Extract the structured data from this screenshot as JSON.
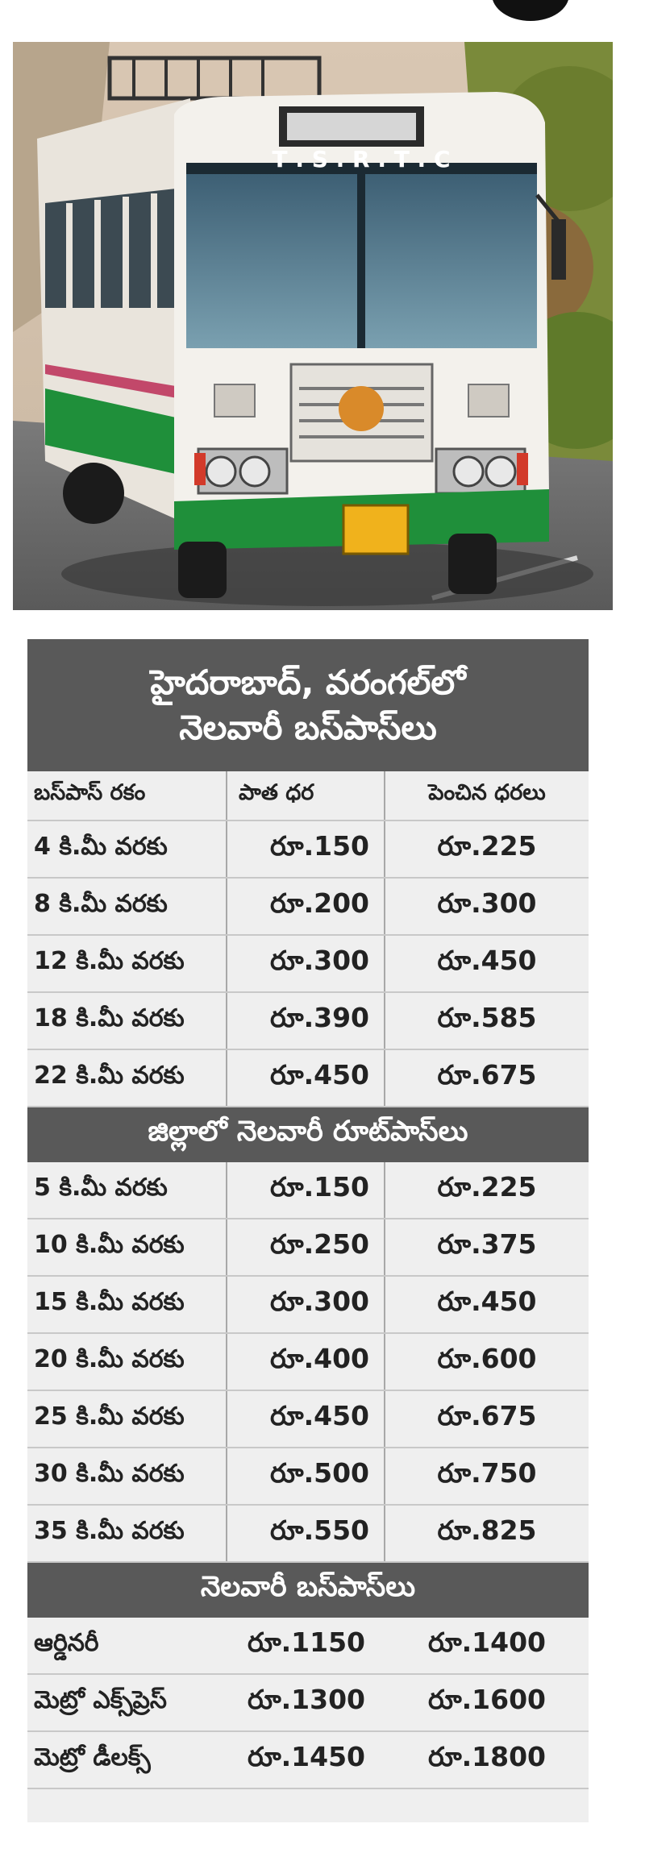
{
  "photo": {
    "bus_marking": "T . S . R . T . C"
  },
  "title": {
    "line1": "హైదరాబాద్, వరంగల్‌లో",
    "line2": "నెలవారీ బస్‌పాస్‌లు"
  },
  "table1": {
    "headers": [
      "బస్‌పాస్ రకం",
      "పాత ధర",
      "పెంచిన ధరలు"
    ],
    "rows": [
      [
        "4 కి.మీ వరకు",
        "రూ.150",
        "రూ.225"
      ],
      [
        "8 కి.మీ వరకు",
        "రూ.200",
        "రూ.300"
      ],
      [
        "12 కి.మీ వరకు",
        "రూ.300",
        "రూ.450"
      ],
      [
        "18 కి.మీ వరకు",
        "రూ.390",
        "రూ.585"
      ],
      [
        "22 కి.మీ వరకు",
        "రూ.450",
        "రూ.675"
      ]
    ]
  },
  "section2": {
    "title": "జిల్లాలో నెలవారీ రూట్‌పాస్‌లు",
    "rows": [
      [
        "5 కి.మీ వరకు",
        "రూ.150",
        "రూ.225"
      ],
      [
        "10 కి.మీ వరకు",
        "రూ.250",
        "రూ.375"
      ],
      [
        "15 కి.మీ వరకు",
        "రూ.300",
        "రూ.450"
      ],
      [
        "20 కి.మీ వరకు",
        "రూ.400",
        "రూ.600"
      ],
      [
        "25 కి.మీ వరకు",
        "రూ.450",
        "రూ.675"
      ],
      [
        "30 కి.మీ వరకు",
        "రూ.500",
        "రూ.750"
      ],
      [
        "35 కి.మీ వరకు",
        "రూ.550",
        "రూ.825"
      ]
    ]
  },
  "section3": {
    "title": "నెలవారీ బస్‌పాస్‌లు",
    "rows": [
      [
        "ఆర్డినరీ",
        "రూ.1150",
        "రూ.1400"
      ],
      [
        "మెట్రో ఎక్స్‌ప్రెస్",
        "రూ.1300",
        "రూ.1600"
      ],
      [
        "మెట్రో డీలక్స్",
        "రూ.1450",
        "రూ.1800"
      ]
    ]
  },
  "colors": {
    "header_bg": "#595959",
    "table_bg": "#efefef",
    "bus_green": "#1f8f3a"
  }
}
